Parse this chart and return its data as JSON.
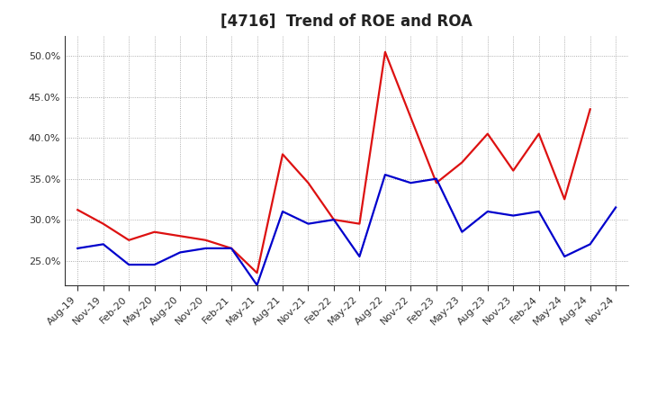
{
  "title": "[4716]  Trend of ROE and ROA",
  "labels": [
    "Aug-19",
    "Nov-19",
    "Feb-20",
    "May-20",
    "Aug-20",
    "Nov-20",
    "Feb-21",
    "May-21",
    "Aug-21",
    "Nov-21",
    "Feb-22",
    "May-22",
    "Aug-22",
    "Nov-22",
    "Feb-23",
    "May-23",
    "Aug-23",
    "Nov-23",
    "Feb-24",
    "May-24",
    "Aug-24",
    "Nov-24"
  ],
  "ROE": [
    31.2,
    29.5,
    27.5,
    28.5,
    28.0,
    27.5,
    26.5,
    23.5,
    38.0,
    34.5,
    30.0,
    29.5,
    50.5,
    42.5,
    34.5,
    37.0,
    40.5,
    36.0,
    40.5,
    32.5,
    43.5,
    null
  ],
  "ROA": [
    26.5,
    27.0,
    24.5,
    24.5,
    26.0,
    26.5,
    26.5,
    22.0,
    31.0,
    29.5,
    30.0,
    25.5,
    35.5,
    34.5,
    35.0,
    28.5,
    31.0,
    30.5,
    31.0,
    25.5,
    27.0,
    31.5
  ],
  "roe_color": "#dd1111",
  "roa_color": "#0000cc",
  "background_color": "#ffffff",
  "grid_color": "#999999",
  "ylim": [
    22.0,
    52.5
  ],
  "yticks": [
    25.0,
    30.0,
    35.0,
    40.0,
    45.0,
    50.0
  ],
  "title_fontsize": 12,
  "axis_fontsize": 8,
  "legend_fontsize": 9,
  "line_width": 1.6
}
